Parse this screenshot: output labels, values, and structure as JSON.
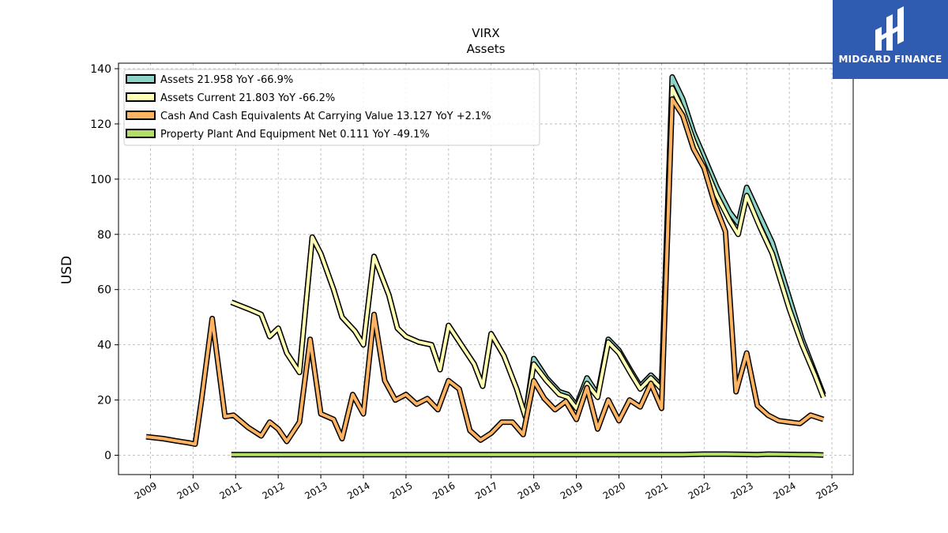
{
  "brand": {
    "name": "MIDGARD FINANCE",
    "bg_color": "#2f5bb0"
  },
  "chart_data": {
    "type": "line",
    "title": "VIRX",
    "subtitle": "Assets",
    "xlabel": "",
    "ylabel": "USD",
    "xlim": [
      2008.25,
      2025.5
    ],
    "ylim": [
      -7,
      142
    ],
    "x_ticks": [
      "2009",
      "2010",
      "2011",
      "2012",
      "2013",
      "2014",
      "2015",
      "2016",
      "2017",
      "2018",
      "2019",
      "2020",
      "2021",
      "2022",
      "2023",
      "2024",
      "2025"
    ],
    "y_ticks": [
      "0",
      "20",
      "40",
      "60",
      "80",
      "100",
      "120",
      "140"
    ],
    "grid": true,
    "legend_position": "upper-left",
    "series": [
      {
        "name": "Assets",
        "legend": "Assets  21.958 YoY -66.9%",
        "color": "#8dd3c7",
        "x": [
          2010.9,
          2011.3,
          2011.6,
          2011.8,
          2012.0,
          2012.2,
          2012.5,
          2012.8,
          2013.0,
          2013.3,
          2013.5,
          2013.8,
          2014.0,
          2014.25,
          2014.6,
          2014.8,
          2015.0,
          2015.3,
          2015.6,
          2015.8,
          2016.0,
          2016.3,
          2016.6,
          2016.8,
          2017.0,
          2017.3,
          2017.6,
          2017.8,
          2018.0,
          2018.3,
          2018.6,
          2018.8,
          2019.0,
          2019.25,
          2019.5,
          2019.75,
          2020.0,
          2020.3,
          2020.5,
          2020.75,
          2021.0,
          2021.25,
          2021.5,
          2021.75,
          2022.0,
          2022.3,
          2022.6,
          2022.8,
          2023.0,
          2023.3,
          2023.6,
          2023.8,
          2024.0,
          2024.3,
          2024.6,
          2024.8
        ],
        "y": [
          55.4,
          53,
          51,
          43,
          46,
          37,
          30,
          79,
          73,
          60,
          50,
          45,
          40,
          72,
          58,
          46,
          43,
          41,
          40,
          31,
          47,
          40,
          33,
          25,
          44,
          36,
          24,
          14,
          35,
          28,
          23,
          22,
          18,
          28,
          22,
          42,
          38,
          30,
          25,
          29,
          25,
          137,
          129,
          117,
          108,
          97,
          88,
          84,
          97,
          87,
          77,
          67,
          57,
          42,
          30,
          22
        ]
      },
      {
        "name": "Assets Current",
        "legend": "Assets Current  21.803 YoY -66.2%",
        "color": "#ffffb3",
        "x": [
          2010.9,
          2011.3,
          2011.6,
          2011.8,
          2012.0,
          2012.2,
          2012.5,
          2012.8,
          2013.0,
          2013.3,
          2013.5,
          2013.8,
          2014.0,
          2014.25,
          2014.6,
          2014.8,
          2015.0,
          2015.3,
          2015.6,
          2015.8,
          2016.0,
          2016.3,
          2016.6,
          2016.8,
          2017.0,
          2017.3,
          2017.6,
          2017.8,
          2018.0,
          2018.3,
          2018.6,
          2018.8,
          2019.0,
          2019.25,
          2019.5,
          2019.75,
          2020.0,
          2020.3,
          2020.5,
          2020.75,
          2021.0,
          2021.25,
          2021.5,
          2021.75,
          2022.0,
          2022.3,
          2022.6,
          2022.8,
          2023.0,
          2023.3,
          2023.6,
          2023.8,
          2024.0,
          2024.3,
          2024.6,
          2024.8
        ],
        "y": [
          55.4,
          53,
          51,
          43,
          46,
          37,
          30,
          79,
          73,
          60,
          50,
          45,
          40,
          72,
          58,
          46,
          43,
          41,
          40,
          31,
          47,
          40,
          33,
          25,
          44,
          36,
          24,
          14,
          33,
          27,
          22,
          21,
          17,
          26,
          21,
          41,
          37,
          29,
          24,
          28,
          24,
          133,
          125,
          114,
          105,
          94,
          85,
          80,
          94,
          83,
          73,
          63,
          53,
          40,
          29,
          21
        ]
      },
      {
        "name": "Cash And Cash Equivalents At Carrying Value",
        "legend": "Cash And Cash Equivalents At Carrying Value  13.127 YoY +2.1%",
        "color": "#fdb462",
        "x": [
          2008.9,
          2009.3,
          2009.6,
          2009.9,
          2010.05,
          2010.2,
          2010.45,
          2010.75,
          2010.95,
          2011.3,
          2011.6,
          2011.8,
          2012.0,
          2012.2,
          2012.5,
          2012.75,
          2013.0,
          2013.3,
          2013.5,
          2013.75,
          2014.0,
          2014.25,
          2014.5,
          2014.75,
          2015.0,
          2015.25,
          2015.5,
          2015.75,
          2016.0,
          2016.25,
          2016.5,
          2016.75,
          2017.0,
          2017.25,
          2017.5,
          2017.75,
          2018.0,
          2018.25,
          2018.5,
          2018.75,
          2019.0,
          2019.25,
          2019.5,
          2019.75,
          2020.0,
          2020.25,
          2020.5,
          2020.75,
          2021.0,
          2021.25,
          2021.5,
          2021.75,
          2022.0,
          2022.25,
          2022.5,
          2022.75,
          2023.0,
          2023.25,
          2023.5,
          2023.75,
          2024.0,
          2024.25,
          2024.5,
          2024.8
        ],
        "y": [
          6.7,
          6,
          5.2,
          4.5,
          4,
          20,
          49.5,
          14,
          14.5,
          10,
          7,
          12,
          9.5,
          5,
          12,
          42,
          15,
          13,
          6,
          22,
          15,
          51,
          27,
          20,
          22,
          18.5,
          20.5,
          16.5,
          27,
          24,
          9,
          5.5,
          8,
          12,
          12,
          7.5,
          27,
          20.5,
          16.5,
          19.5,
          13,
          24.5,
          9.5,
          20,
          12.5,
          20,
          17.5,
          26,
          17,
          129,
          123,
          111,
          104,
          91,
          81,
          23,
          37,
          18,
          14.5,
          12.5,
          12,
          11.5,
          14.5,
          13
        ]
      },
      {
        "name": "Property Plant And Equipment Net",
        "legend": "Property Plant And Equipment Net  0.111 YoY -49.1%",
        "color": "#b3de69",
        "x": [
          2010.9,
          2012.0,
          2013.0,
          2014.0,
          2015.0,
          2016.0,
          2017.0,
          2018.0,
          2019.0,
          2020.0,
          2021.0,
          2021.5,
          2022.0,
          2022.5,
          2023.0,
          2023.25,
          2023.5,
          2024.0,
          2024.5,
          2024.8
        ],
        "y": [
          0.2,
          0.2,
          0.2,
          0.2,
          0.2,
          0.2,
          0.2,
          0.2,
          0.2,
          0.2,
          0.2,
          0.2,
          0.4,
          0.4,
          0.3,
          0.2,
          0.4,
          0.3,
          0.2,
          0.1
        ]
      }
    ]
  }
}
